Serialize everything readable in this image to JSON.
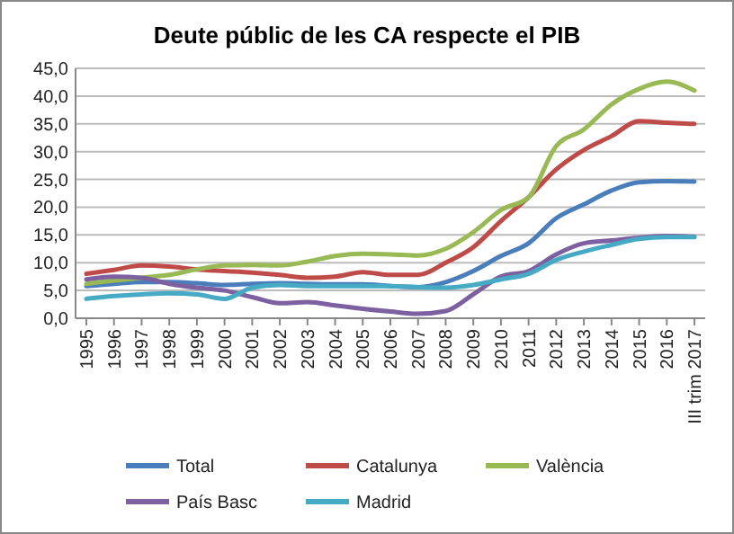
{
  "chart_data": {
    "type": "line",
    "title": "Deute públic de les CA respecte el PIB",
    "categories": [
      "1995",
      "1996",
      "1997",
      "1998",
      "1999",
      "2000",
      "2001",
      "2002",
      "2003",
      "2004",
      "2005",
      "2006",
      "2007",
      "2008",
      "2009",
      "2010",
      "2011",
      "2012",
      "2013",
      "2014",
      "2015",
      "2016",
      "III trim 2017"
    ],
    "series": [
      {
        "name": "Total",
        "color": "#4a7ebb",
        "values": [
          5.8,
          6.2,
          6.5,
          6.5,
          6.3,
          6.0,
          6.2,
          6.3,
          6.2,
          6.1,
          6.1,
          5.8,
          5.6,
          6.5,
          8.5,
          11.2,
          13.5,
          18.0,
          20.5,
          23.0,
          24.5,
          24.7,
          24.6
        ]
      },
      {
        "name": "Catalunya",
        "color": "#be4b48",
        "values": [
          8.0,
          8.7,
          9.5,
          9.3,
          8.8,
          8.5,
          8.2,
          7.8,
          7.3,
          7.5,
          8.3,
          7.8,
          7.8,
          10.0,
          12.8,
          17.5,
          21.8,
          26.8,
          30.3,
          32.8,
          35.5,
          35.2,
          35.0
        ]
      },
      {
        "name": "València",
        "color": "#98b954",
        "values": [
          6.2,
          6.8,
          7.3,
          7.8,
          8.8,
          9.5,
          9.6,
          9.5,
          10.2,
          11.2,
          11.6,
          11.5,
          11.3,
          12.5,
          15.5,
          19.5,
          21.8,
          31.0,
          34.0,
          38.5,
          41.3,
          42.6,
          41.0
        ]
      },
      {
        "name": "País Basc",
        "color": "#7d60a0",
        "values": [
          7.0,
          7.5,
          7.3,
          6.2,
          5.5,
          5.0,
          3.8,
          2.7,
          2.9,
          2.3,
          1.7,
          1.2,
          0.8,
          1.3,
          4.3,
          7.5,
          8.5,
          11.5,
          13.5,
          14.0,
          14.5,
          14.8,
          14.7
        ]
      },
      {
        "name": "Madrid",
        "color": "#46aac5",
        "values": [
          3.5,
          4.0,
          4.3,
          4.5,
          4.3,
          3.5,
          5.5,
          6.0,
          5.8,
          5.8,
          5.8,
          5.8,
          5.6,
          5.5,
          6.0,
          7.0,
          8.0,
          10.5,
          12.0,
          13.2,
          14.3,
          14.6,
          14.6
        ]
      }
    ],
    "ylim": [
      0,
      45
    ],
    "yticks": [
      {
        "value": 0,
        "label": "0,0"
      },
      {
        "value": 5,
        "label": "5,0"
      },
      {
        "value": 10,
        "label": "10,0"
      },
      {
        "value": 15,
        "label": "15,0"
      },
      {
        "value": 20,
        "label": "20,0"
      },
      {
        "value": 25,
        "label": "25,0"
      },
      {
        "value": 30,
        "label": "30,0"
      },
      {
        "value": 35,
        "label": "35,0"
      },
      {
        "value": 40,
        "label": "40,0"
      },
      {
        "value": 45,
        "label": "45,0"
      }
    ],
    "grid": "y",
    "legend": "bottom",
    "marker": "none",
    "line_style": "solid"
  }
}
